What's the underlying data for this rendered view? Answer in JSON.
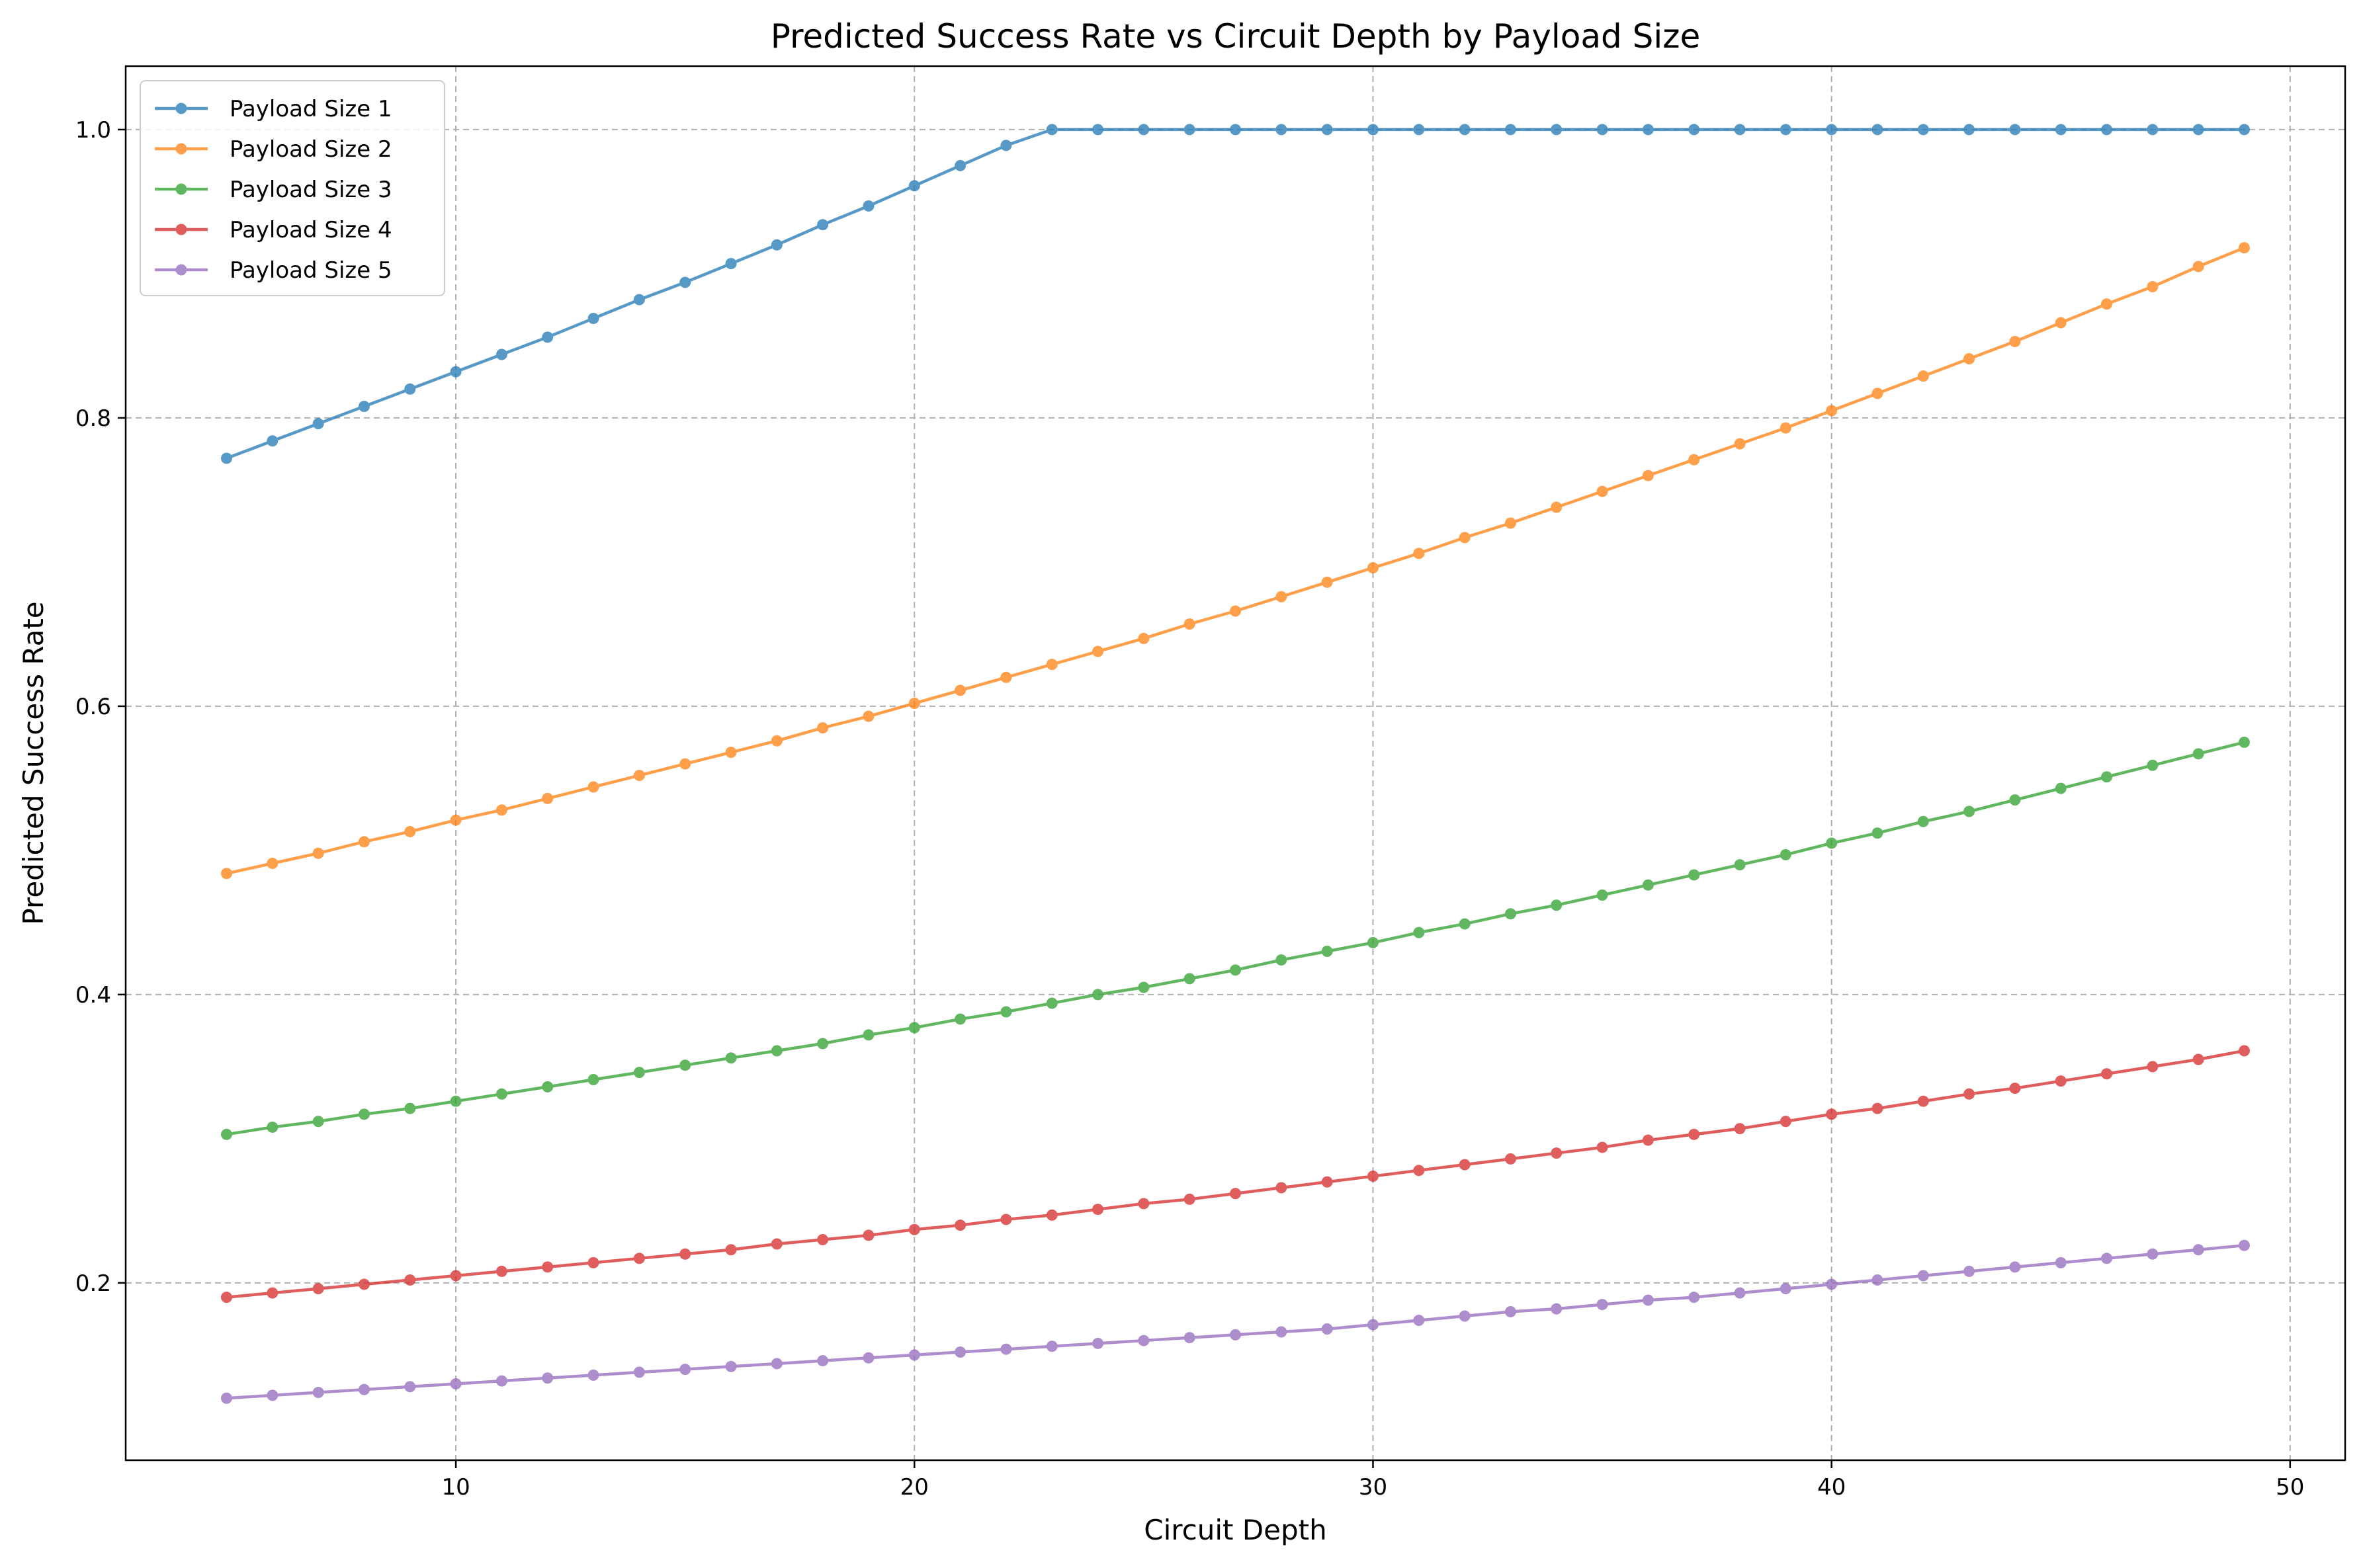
{
  "chart_data": {
    "type": "line",
    "title": "Predicted Success Rate vs Circuit Depth by Payload Size",
    "xlabel": "Circuit Depth",
    "ylabel": "Predicted Success Rate",
    "xlim": [
      2.8,
      51.2
    ],
    "ylim": [
      0.077,
      1.044
    ],
    "xticks": [
      10,
      20,
      30,
      40,
      50
    ],
    "yticks": [
      0.2,
      0.4,
      0.6,
      0.8,
      1.0
    ],
    "grid": true,
    "legend_position": "upper-left",
    "x": [
      5,
      6,
      7,
      8,
      9,
      10,
      11,
      12,
      13,
      14,
      15,
      16,
      17,
      18,
      19,
      20,
      21,
      22,
      23,
      24,
      25,
      26,
      27,
      28,
      29,
      30,
      31,
      32,
      33,
      34,
      35,
      36,
      37,
      38,
      39,
      40,
      41,
      42,
      43,
      44,
      45,
      46,
      47,
      48,
      49
    ],
    "series": [
      {
        "name": "Payload Size 1",
        "color": "#1f77b4",
        "values": [
          0.772,
          0.784,
          0.796,
          0.808,
          0.82,
          0.832,
          0.844,
          0.856,
          0.869,
          0.882,
          0.894,
          0.907,
          0.92,
          0.934,
          0.947,
          0.961,
          0.975,
          0.989,
          1.0,
          1.0,
          1.0,
          1.0,
          1.0,
          1.0,
          1.0,
          1.0,
          1.0,
          1.0,
          1.0,
          1.0,
          1.0,
          1.0,
          1.0,
          1.0,
          1.0,
          1.0,
          1.0,
          1.0,
          1.0,
          1.0,
          1.0,
          1.0,
          1.0,
          1.0,
          1.0
        ]
      },
      {
        "name": "Payload Size 2",
        "color": "#ff7f0e",
        "values": [
          0.484,
          0.491,
          0.498,
          0.506,
          0.513,
          0.521,
          0.528,
          0.536,
          0.544,
          0.552,
          0.56,
          0.568,
          0.576,
          0.585,
          0.593,
          0.602,
          0.611,
          0.62,
          0.629,
          0.638,
          0.647,
          0.657,
          0.666,
          0.676,
          0.686,
          0.696,
          0.706,
          0.717,
          0.727,
          0.738,
          0.749,
          0.76,
          0.771,
          0.782,
          0.793,
          0.805,
          0.817,
          0.829,
          0.841,
          0.853,
          0.866,
          0.879,
          0.891,
          0.905,
          0.918
        ]
      },
      {
        "name": "Payload Size 3",
        "color": "#2ca02c",
        "values": [
          0.303,
          0.308,
          0.312,
          0.317,
          0.321,
          0.326,
          0.331,
          0.336,
          0.341,
          0.346,
          0.351,
          0.356,
          0.361,
          0.366,
          0.372,
          0.377,
          0.383,
          0.388,
          0.394,
          0.4,
          0.405,
          0.411,
          0.417,
          0.424,
          0.43,
          0.436,
          0.443,
          0.449,
          0.456,
          0.462,
          0.469,
          0.476,
          0.483,
          0.49,
          0.497,
          0.505,
          0.512,
          0.52,
          0.527,
          0.535,
          0.543,
          0.551,
          0.559,
          0.567,
          0.575
        ]
      },
      {
        "name": "Payload Size 4",
        "color": "#d62728",
        "values": [
          0.19,
          0.193,
          0.196,
          0.199,
          0.202,
          0.205,
          0.208,
          0.211,
          0.214,
          0.217,
          0.22,
          0.223,
          0.227,
          0.23,
          0.233,
          0.237,
          0.24,
          0.244,
          0.247,
          0.251,
          0.255,
          0.258,
          0.262,
          0.266,
          0.27,
          0.274,
          0.278,
          0.282,
          0.286,
          0.29,
          0.294,
          0.299,
          0.303,
          0.307,
          0.312,
          0.317,
          0.321,
          0.326,
          0.331,
          0.335,
          0.34,
          0.345,
          0.35,
          0.355,
          0.361
        ]
      },
      {
        "name": "Payload Size 5",
        "color": "#9467bd",
        "values": [
          0.12,
          0.122,
          0.124,
          0.126,
          0.128,
          0.13,
          0.132,
          0.134,
          0.136,
          0.138,
          0.14,
          0.142,
          0.144,
          0.146,
          0.148,
          0.15,
          0.152,
          0.154,
          0.156,
          0.158,
          0.16,
          0.162,
          0.164,
          0.166,
          0.168,
          0.171,
          0.174,
          0.177,
          0.18,
          0.182,
          0.185,
          0.188,
          0.19,
          0.193,
          0.196,
          0.199,
          0.202,
          0.205,
          0.208,
          0.211,
          0.214,
          0.217,
          0.22,
          0.223,
          0.226
        ]
      }
    ]
  }
}
